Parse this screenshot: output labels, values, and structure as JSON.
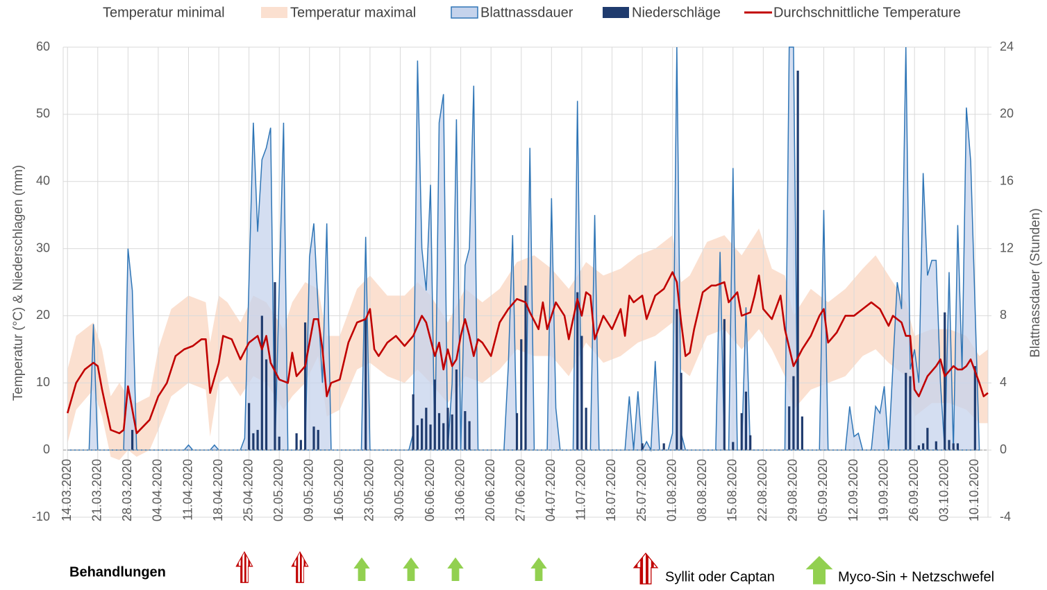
{
  "chart_data": {
    "type": "combo",
    "ylabel": "Temperatur (°C) & Niederschlagen (mm)",
    "y2label": "Blattnassdauer (Stunden)",
    "xlim": [
      -1,
      213
    ],
    "ylim": [
      -10,
      60
    ],
    "yticks": [
      -10,
      0,
      10,
      20,
      30,
      40,
      50,
      60
    ],
    "y2lim": [
      -4,
      24
    ],
    "y2ticks": [
      -4,
      0,
      4,
      8,
      12,
      16,
      20,
      24
    ],
    "grid": true,
    "legend": "top",
    "xticks": [
      {
        "value": 0,
        "label": "14.03.2020"
      },
      {
        "value": 7,
        "label": "21.03.2020"
      },
      {
        "value": 14,
        "label": "28.03.2020"
      },
      {
        "value": 21,
        "label": "04.04.2020"
      },
      {
        "value": 28,
        "label": "11.04.2020"
      },
      {
        "value": 35,
        "label": "18.04.2020"
      },
      {
        "value": 42,
        "label": "25.04.2020"
      },
      {
        "value": 49,
        "label": "02.05.2020"
      },
      {
        "value": 56,
        "label": "09.05.2020"
      },
      {
        "value": 63,
        "label": "16.05.2020"
      },
      {
        "value": 70,
        "label": "23.05.2020"
      },
      {
        "value": 77,
        "label": "30.05.2020"
      },
      {
        "value": 84,
        "label": "06.06.2020"
      },
      {
        "value": 91,
        "label": "13.06.2020"
      },
      {
        "value": 98,
        "label": "20.06.2020"
      },
      {
        "value": 105,
        "label": "27.06.2020"
      },
      {
        "value": 112,
        "label": "04.07.2020"
      },
      {
        "value": 119,
        "label": "11.07.2020"
      },
      {
        "value": 126,
        "label": "18.07.2020"
      },
      {
        "value": 133,
        "label": "25.07.2020"
      },
      {
        "value": 140,
        "label": "01.08.2020"
      },
      {
        "value": 147,
        "label": "08.08.2020"
      },
      {
        "value": 154,
        "label": "15.08.2020"
      },
      {
        "value": 161,
        "label": "22.08.2020"
      },
      {
        "value": 168,
        "label": "29.08.2020"
      },
      {
        "value": 175,
        "label": "05.09.2020"
      },
      {
        "value": 182,
        "label": "12.09.2020"
      },
      {
        "value": 189,
        "label": "19.09.2020"
      },
      {
        "value": 196,
        "label": "26.09.2020"
      },
      {
        "value": 203,
        "label": "03.10.2020"
      },
      {
        "value": 210,
        "label": "10.10.2020"
      }
    ],
    "series": [
      {
        "name": "Temperatur minimal",
        "type": "area",
        "color": "#ffffff",
        "x": [
          0,
          2,
          6,
          8,
          10,
          12,
          14,
          16,
          19,
          21,
          24,
          28,
          32,
          33,
          35,
          37,
          40,
          43,
          46,
          50,
          52,
          55,
          58,
          60,
          63,
          67,
          70,
          74,
          78,
          81,
          84,
          88,
          92,
          96,
          100,
          104,
          108,
          112,
          116,
          120,
          124,
          128,
          132,
          136,
          140,
          142,
          144,
          148,
          152,
          156,
          160,
          163,
          166,
          168,
          172,
          176,
          180,
          184,
          187,
          190,
          194,
          196,
          200,
          204,
          208,
          211,
          213
        ],
        "values": [
          1,
          6,
          9,
          5,
          -1,
          -1.5,
          0,
          -1,
          0,
          3,
          8,
          10,
          9,
          2,
          10,
          11,
          8,
          11,
          10,
          6,
          8,
          10,
          14,
          5,
          6,
          12,
          13,
          11,
          10,
          12,
          10,
          7,
          11,
          10,
          12,
          15,
          14,
          14,
          11,
          16,
          13,
          14,
          16,
          17,
          19,
          12,
          11,
          17,
          18,
          15,
          18,
          15,
          11,
          6,
          9,
          10,
          11,
          14,
          15,
          13,
          11,
          5,
          7,
          7,
          6,
          4,
          4
        ]
      },
      {
        "name": "Temperatur maximal",
        "type": "area",
        "color": "#fbe0d0",
        "x": [
          0,
          2,
          6,
          8,
          10,
          12,
          14,
          16,
          19,
          21,
          24,
          28,
          32,
          33,
          35,
          37,
          40,
          43,
          46,
          50,
          52,
          55,
          58,
          60,
          63,
          67,
          70,
          74,
          78,
          81,
          84,
          88,
          92,
          96,
          100,
          104,
          108,
          112,
          116,
          120,
          124,
          128,
          132,
          136,
          140,
          142,
          144,
          148,
          152,
          156,
          160,
          163,
          166,
          168,
          172,
          176,
          180,
          184,
          187,
          190,
          194,
          196,
          200,
          204,
          208,
          211,
          213
        ],
        "values": [
          12,
          17,
          19,
          15,
          8,
          10,
          8,
          7,
          8,
          15,
          21,
          23,
          22,
          16,
          23,
          22,
          19,
          23,
          22,
          18,
          22,
          25,
          24,
          17,
          17,
          24,
          26,
          23,
          23,
          25,
          23,
          19,
          24,
          22,
          24,
          28,
          29,
          27,
          24,
          28,
          26,
          27,
          29,
          30,
          32,
          25,
          26,
          31,
          32,
          29,
          33,
          27,
          26,
          20,
          24,
          22,
          24,
          27,
          29,
          26,
          22,
          17,
          18,
          18,
          17,
          14,
          15
        ]
      },
      {
        "name": "Blattnassdauer",
        "type": "area",
        "axis": "y2",
        "color": "#c5d3ec",
        "stroke": "#2e75b6",
        "x": [
          0,
          5,
          6,
          7,
          13,
          14,
          15,
          16,
          27,
          28,
          29,
          33,
          34,
          35,
          40,
          41,
          43,
          44,
          45,
          46,
          47,
          48,
          50,
          51,
          55,
          56,
          57,
          58,
          59,
          60,
          61,
          68,
          69,
          70,
          79,
          80,
          81,
          82,
          83,
          84,
          85,
          86,
          87,
          88,
          89,
          90,
          91,
          92,
          93,
          94,
          95,
          101,
          102,
          103,
          104,
          106,
          107,
          108,
          111,
          112,
          113,
          114,
          117,
          118,
          119,
          121,
          122,
          123,
          129,
          130,
          131,
          132,
          133,
          134,
          135,
          136,
          137,
          139,
          140,
          141,
          142,
          143,
          150,
          151,
          152,
          153,
          154,
          155,
          156,
          157,
          158,
          166,
          167,
          168,
          169,
          174,
          175,
          176,
          180,
          181,
          182,
          183,
          184,
          186,
          187,
          188,
          189,
          190,
          192,
          193,
          194,
          195,
          196,
          197,
          198,
          199,
          200,
          201,
          202,
          203,
          204,
          205,
          206,
          207,
          208,
          209,
          211
        ],
        "values": [
          0,
          0,
          7.5,
          0,
          0,
          12,
          9.5,
          0,
          0,
          0.3,
          0,
          0,
          0.3,
          0,
          0,
          0.7,
          19.5,
          13,
          17.3,
          18,
          19.2,
          0,
          19.5,
          0,
          0,
          11.5,
          13.5,
          8.5,
          4,
          13.5,
          0,
          0,
          12.7,
          0,
          0,
          1,
          23.2,
          12,
          9.5,
          15.8,
          0,
          19.5,
          21.2,
          0,
          4,
          19.7,
          0,
          11,
          12,
          21.7,
          0,
          0,
          5,
          12.8,
          0,
          0,
          18,
          0,
          0,
          15,
          2.5,
          0,
          0,
          20.8,
          0,
          0,
          14,
          0,
          0,
          3.2,
          0,
          3.5,
          0,
          0.5,
          0,
          5.3,
          0,
          0,
          1,
          24,
          1,
          0,
          0,
          11.8,
          0,
          0,
          16.8,
          0,
          0,
          8.5,
          0,
          0,
          24,
          24,
          0,
          0,
          14.3,
          0,
          0,
          2.6,
          0.8,
          1,
          0,
          0,
          2.6,
          2.2,
          3.8,
          0,
          10,
          8.4,
          24,
          4.8,
          6,
          4,
          16.5,
          10.4,
          11.3,
          11.3,
          4,
          0,
          10.6,
          0,
          13.4,
          4.8,
          20.4,
          17.2,
          0
        ]
      },
      {
        "name": "Niederschläge",
        "type": "bar",
        "color": "#1f3b6e",
        "x": [
          15,
          42,
          43,
          44,
          45,
          46,
          48,
          49,
          53,
          54,
          55,
          57,
          58,
          69,
          80,
          81,
          82,
          83,
          84,
          85,
          86,
          87,
          88,
          89,
          90,
          92,
          93,
          104,
          105,
          106,
          118,
          119,
          120,
          133,
          138,
          141,
          142,
          152,
          154,
          156,
          157,
          158,
          167,
          168,
          169,
          170,
          194,
          195,
          197,
          198,
          199,
          201,
          203,
          204,
          205,
          206,
          210
        ],
        "values": [
          3,
          7,
          2.5,
          3,
          20,
          13.5,
          25,
          2,
          2.5,
          1.5,
          19,
          3.5,
          3,
          19.5,
          8.3,
          3.7,
          4.7,
          6.3,
          3.8,
          10.5,
          5.5,
          4,
          6.3,
          5.3,
          12,
          5.8,
          4.3,
          5.5,
          16.5,
          24.5,
          23.5,
          17,
          6.3,
          1,
          1,
          21,
          11.5,
          19.5,
          1.2,
          5.5,
          8.7,
          2.2,
          6.5,
          11,
          56.5,
          5,
          11.5,
          11,
          0.7,
          1,
          3.3,
          1.3,
          20.5,
          1.5,
          1,
          1,
          12.5
        ]
      },
      {
        "name": "Durchschnittliche Temperature",
        "type": "line",
        "color": "#c00000",
        "x": [
          0,
          2,
          4,
          6,
          7,
          8,
          10,
          12,
          13,
          14,
          16,
          19,
          21,
          23,
          25,
          27,
          29,
          31,
          32,
          33,
          35,
          36,
          38,
          40,
          42,
          44,
          45,
          46,
          47,
          49,
          51,
          52,
          53,
          55,
          57,
          58,
          59,
          60,
          61,
          63,
          65,
          67,
          69,
          70,
          71,
          72,
          74,
          76,
          78,
          80,
          82,
          83,
          85,
          86,
          87,
          88,
          89,
          90,
          91,
          92,
          93,
          94,
          95,
          96,
          97,
          98,
          100,
          102,
          104,
          106,
          107,
          109,
          110,
          111,
          113,
          115,
          116,
          118,
          119,
          120,
          121,
          122,
          124,
          126,
          128,
          129,
          130,
          131,
          133,
          134,
          136,
          138,
          140,
          141,
          142,
          143,
          144,
          145,
          147,
          149,
          150,
          152,
          153,
          155,
          156,
          158,
          159,
          160,
          161,
          163,
          165,
          166,
          168,
          170,
          172,
          174,
          175,
          176,
          178,
          180,
          182,
          184,
          186,
          188,
          190,
          191,
          193,
          194,
          195,
          196,
          197,
          199,
          201,
          202,
          203,
          205,
          206,
          207,
          208,
          209,
          211,
          212,
          213
        ],
        "values": [
          5.5,
          10,
          12,
          13,
          12.5,
          9,
          3,
          2.5,
          3,
          9.5,
          2.5,
          4.5,
          8,
          10,
          14,
          15,
          15.5,
          16.5,
          16.5,
          8.5,
          13,
          17,
          16.5,
          13.5,
          16,
          17,
          15,
          17,
          13,
          10.5,
          10,
          14.5,
          11,
          12.5,
          19.5,
          19.5,
          15,
          8,
          10,
          10.5,
          16,
          19,
          19.5,
          21,
          15,
          14,
          16,
          17,
          15.5,
          17,
          20,
          19,
          14,
          16,
          12,
          15,
          12.5,
          13.5,
          17,
          19.5,
          17,
          14,
          16.5,
          16,
          15,
          14,
          19,
          21,
          22.5,
          22,
          20.5,
          18,
          22,
          18,
          22,
          20,
          16.5,
          22.5,
          20,
          23.5,
          23,
          16.5,
          20,
          18,
          21,
          17,
          23,
          22,
          23,
          19.5,
          23,
          24,
          26.5,
          25,
          19,
          14,
          14.5,
          18,
          23.5,
          24.5,
          24.5,
          25,
          22,
          23.5,
          20,
          20.5,
          23,
          26,
          21,
          19.5,
          23,
          18,
          12.5,
          15,
          17,
          20,
          21,
          16,
          17.5,
          20,
          20,
          21,
          22,
          21,
          18.5,
          20,
          19,
          17,
          17,
          9,
          8,
          11,
          12.5,
          13.5,
          11,
          12.5,
          12,
          12,
          12.5,
          13.5,
          10,
          8,
          8.5
        ]
      }
    ]
  },
  "treatments": {
    "title": "Behandlungen",
    "legend": [
      "Syllit oder Captan",
      "Myco-Sin + Netzschwefel"
    ]
  }
}
